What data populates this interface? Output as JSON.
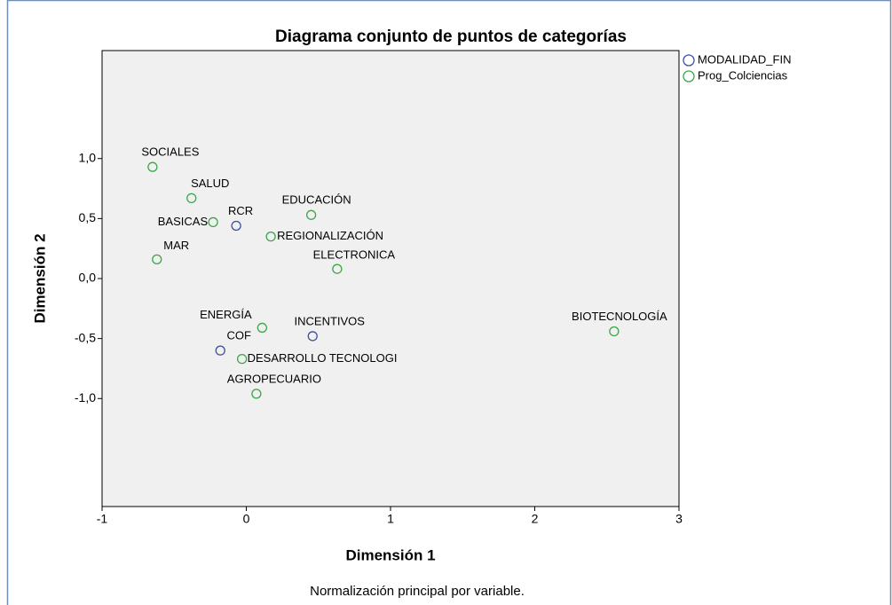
{
  "chart_data": {
    "type": "scatter",
    "title": "Diagrama conjunto de puntos de categorías",
    "xlabel": "Dimensión 1",
    "ylabel": "Dimensión 2",
    "note": "Normalización principal por variable.",
    "xlim": [
      -1,
      3
    ],
    "ylim": [
      -1.9,
      1.9
    ],
    "xticks": [
      -1,
      0,
      1,
      2,
      3
    ],
    "yticks": [
      {
        "value": 1.0,
        "label": "1,0"
      },
      {
        "value": 0.5,
        "label": "0,5"
      },
      {
        "value": 0.0,
        "label": "0,0"
      },
      {
        "value": -0.5,
        "label": "-0,5"
      },
      {
        "value": -1.0,
        "label": "-1,0"
      }
    ],
    "series": [
      {
        "name": "MODALIDAD_FIN",
        "color": "#3c4fa0",
        "labels": [
          "RCR",
          "INCENTIVOS",
          "COF"
        ],
        "x": [
          -0.07,
          0.46,
          -0.18
        ],
        "values": [
          0.44,
          -0.48,
          -0.6
        ]
      },
      {
        "name": "Prog_Colciencias",
        "color": "#3ca64a",
        "labels": [
          "SOCIALES",
          "SALUD",
          "BASICAS",
          "MAR",
          "EDUCACIÓN",
          "REGIONALIZACIÓN",
          "ELECTRONICA",
          "ENERGÍA",
          "DESARROLLO TECNOLOGI",
          "AGROPECUARIO",
          "BIOTECNOLOGÍA"
        ],
        "x": [
          -0.65,
          -0.38,
          -0.23,
          -0.62,
          0.45,
          0.17,
          0.63,
          0.11,
          -0.03,
          0.07,
          2.55
        ],
        "values": [
          0.93,
          0.67,
          0.47,
          0.16,
          0.53,
          0.35,
          0.08,
          -0.41,
          -0.67,
          -0.96,
          -0.44
        ]
      }
    ]
  }
}
